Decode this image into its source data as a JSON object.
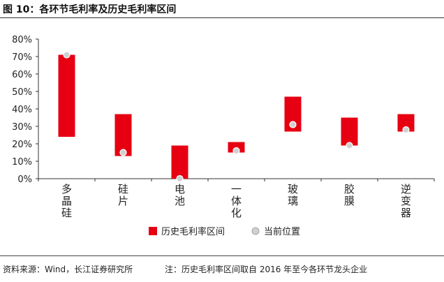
{
  "header": {
    "title": "图 10：各环节毛利率及历史毛利率区间"
  },
  "footer": {
    "source": "资料来源：Wind，长江证券研究所",
    "note": "注：历史毛利率区间取自 2016 年至今各环节龙头企业"
  },
  "chart_data": {
    "type": "bar",
    "title": "",
    "xlabel": "",
    "ylabel": "",
    "ylim": [
      0,
      80
    ],
    "yticks": [
      "0%",
      "10%",
      "20%",
      "30%",
      "40%",
      "50%",
      "60%",
      "70%",
      "80%"
    ],
    "grid": false,
    "legend_position": "bottom",
    "categories": [
      "多晶硅",
      "硅片",
      "电池",
      "一体化",
      "玻璃",
      "胶膜",
      "逆变器"
    ],
    "series": [
      {
        "name": "历史毛利率区间",
        "color": "#e60012",
        "low": [
          24,
          13,
          0,
          15,
          27,
          19,
          27
        ],
        "high": [
          71,
          37,
          19,
          21,
          47,
          35,
          37
        ]
      },
      {
        "name": "当前位置",
        "color": "#d0d0d0",
        "values": [
          71,
          15,
          0,
          16,
          31,
          19,
          28
        ]
      }
    ]
  }
}
